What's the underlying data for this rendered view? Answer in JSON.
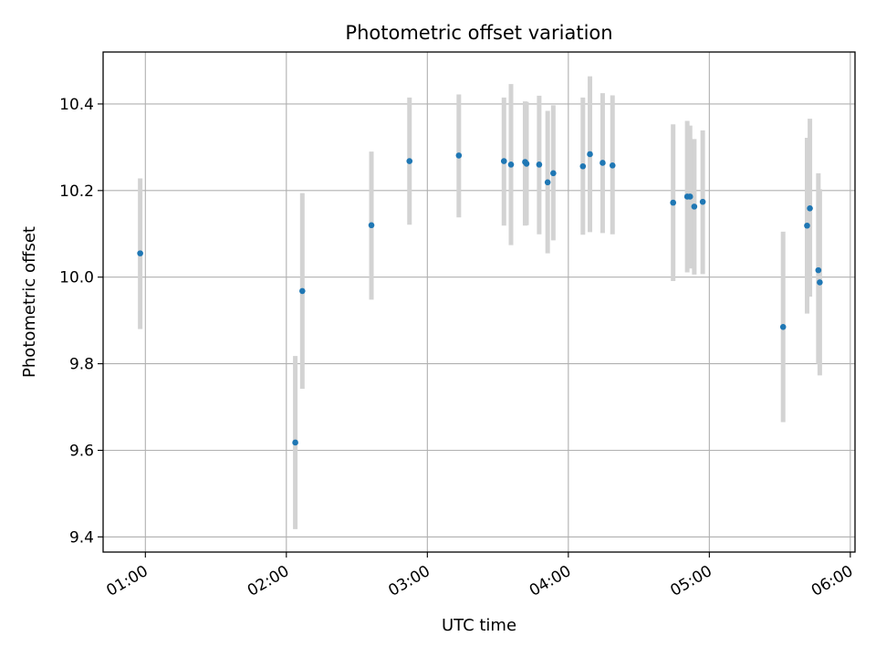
{
  "chart_data": {
    "type": "scatter",
    "title": "Photometric offset variation",
    "xlabel": "UTC time",
    "ylabel": "Photometric offset",
    "x_unit": "hours UTC",
    "xlim": [
      0.667,
      6.0
    ],
    "ylim": [
      9.365,
      10.52
    ],
    "grid": true,
    "xticks": [
      {
        "value": 0.9667,
        "label": "01:00"
      },
      {
        "value": 1.9667,
        "label": "02:00"
      },
      {
        "value": 2.9667,
        "label": "03:00"
      },
      {
        "value": 3.9667,
        "label": "04:00"
      },
      {
        "value": 4.9667,
        "label": "05:00"
      },
      {
        "value": 5.9667,
        "label": "06:00"
      }
    ],
    "yticks": [
      9.4,
      9.6,
      9.8,
      10.0,
      10.2,
      10.4
    ],
    "marker_color": "#1f77b4",
    "errorbar_color": "#d3d3d3",
    "points": [
      {
        "x": 0.93,
        "y": 10.055,
        "ylo": 9.88,
        "yhi": 10.228
      },
      {
        "x": 2.03,
        "y": 9.618,
        "ylo": 9.418,
        "yhi": 9.818
      },
      {
        "x": 2.08,
        "y": 9.968,
        "ylo": 9.742,
        "yhi": 10.194
      },
      {
        "x": 2.57,
        "y": 10.12,
        "ylo": 9.948,
        "yhi": 10.29
      },
      {
        "x": 2.84,
        "y": 10.268,
        "ylo": 10.121,
        "yhi": 10.415
      },
      {
        "x": 3.19,
        "y": 10.281,
        "ylo": 10.138,
        "yhi": 10.422
      },
      {
        "x": 3.51,
        "y": 10.268,
        "ylo": 10.119,
        "yhi": 10.415
      },
      {
        "x": 3.56,
        "y": 10.26,
        "ylo": 10.074,
        "yhi": 10.446
      },
      {
        "x": 3.66,
        "y": 10.266,
        "ylo": 10.119,
        "yhi": 10.406
      },
      {
        "x": 3.67,
        "y": 10.262,
        "ylo": 10.12,
        "yhi": 10.405
      },
      {
        "x": 3.76,
        "y": 10.26,
        "ylo": 10.099,
        "yhi": 10.419
      },
      {
        "x": 3.82,
        "y": 10.219,
        "ylo": 10.055,
        "yhi": 10.384
      },
      {
        "x": 3.86,
        "y": 10.24,
        "ylo": 10.085,
        "yhi": 10.397
      },
      {
        "x": 4.07,
        "y": 10.256,
        "ylo": 10.098,
        "yhi": 10.415
      },
      {
        "x": 4.12,
        "y": 10.284,
        "ylo": 10.104,
        "yhi": 10.464
      },
      {
        "x": 4.21,
        "y": 10.264,
        "ylo": 10.102,
        "yhi": 10.425
      },
      {
        "x": 4.28,
        "y": 10.258,
        "ylo": 10.099,
        "yhi": 10.42
      },
      {
        "x": 4.71,
        "y": 10.172,
        "ylo": 9.991,
        "yhi": 10.353
      },
      {
        "x": 4.81,
        "y": 10.186,
        "ylo": 10.011,
        "yhi": 10.361
      },
      {
        "x": 4.83,
        "y": 10.186,
        "ylo": 10.02,
        "yhi": 10.35
      },
      {
        "x": 4.86,
        "y": 10.163,
        "ylo": 10.006,
        "yhi": 10.319
      },
      {
        "x": 4.92,
        "y": 10.174,
        "ylo": 10.007,
        "yhi": 10.339
      },
      {
        "x": 5.49,
        "y": 9.885,
        "ylo": 9.665,
        "yhi": 10.105
      },
      {
        "x": 5.66,
        "y": 10.119,
        "ylo": 9.916,
        "yhi": 10.322
      },
      {
        "x": 5.68,
        "y": 10.159,
        "ylo": 9.955,
        "yhi": 10.366
      },
      {
        "x": 5.74,
        "y": 10.016,
        "ylo": 9.8,
        "yhi": 10.24
      },
      {
        "x": 5.75,
        "y": 9.988,
        "ylo": 9.773,
        "yhi": 10.203
      }
    ]
  }
}
